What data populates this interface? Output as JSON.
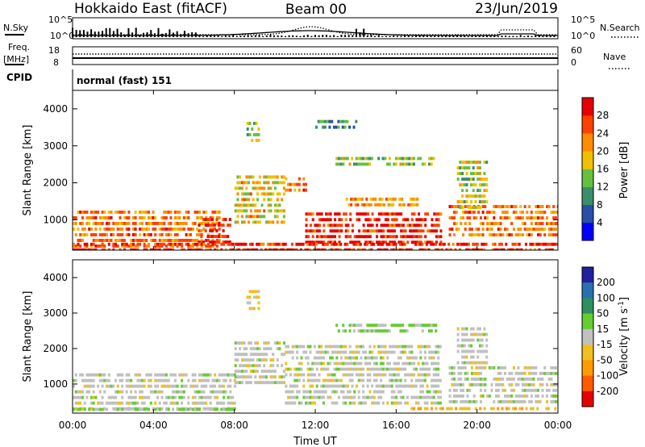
{
  "header": {
    "station": "Hokkaido East (fitACF)",
    "beam": "Beam 00",
    "date": "23/Jun/2019"
  },
  "noise_panel": {
    "left_label": "N.Sky",
    "right_label": "N.Search",
    "left_ticks": [
      "10^5",
      "10^0"
    ],
    "right_ticks": [
      "10^5",
      "10^0"
    ]
  },
  "freq_panel": {
    "left_label_1": "Freq.",
    "left_label_2": "[MHz]",
    "right_label": "Nave",
    "left_ticks": [
      "18",
      "8"
    ],
    "right_ticks": [
      "60",
      "0"
    ]
  },
  "cpid_panel": {
    "label": "CPID",
    "mode": "normal (fast) 151"
  },
  "time_axis": {
    "label": "Time UT",
    "ticks": [
      "00:00",
      "04:00",
      "08:00",
      "12:00",
      "16:00",
      "20:00",
      "00:00"
    ]
  },
  "colors": {
    "power_scale": [
      "#0000ff",
      "#2a4fa8",
      "#3a8f6a",
      "#66c040",
      "#f0c000",
      "#ff8c00",
      "#ff4000",
      "#e60000"
    ],
    "velocity_scale": [
      "#e60000",
      "#ff5a00",
      "#ff9a00",
      "#f0c020",
      "#c0c0c0",
      "#66cc33",
      "#2f8f5f",
      "#2a6fb0",
      "#2020a0"
    ],
    "ground_scatter": "#c0c0c0"
  },
  "chart_data": [
    {
      "type": "heatmap",
      "title": "",
      "ylabel": "Slant Range [km]",
      "xlabel": "Time UT",
      "x": [
        "00:00",
        "04:00",
        "08:00",
        "12:00",
        "16:00",
        "20:00",
        "00:00"
      ],
      "yticks": [
        "1000",
        "2000",
        "3000",
        "4000"
      ],
      "ylim": [
        180,
        4500
      ],
      "xlim_hours": [
        0,
        24
      ],
      "colorbar": {
        "label": "Power [dB]",
        "ticks": [
          "4",
          "8",
          "12",
          "16",
          "20",
          "24",
          "28"
        ],
        "range": [
          0,
          30
        ]
      },
      "regions": [
        {
          "t0": 0,
          "t1": 7.3,
          "r0": 200,
          "r1": 1250,
          "value": 22
        },
        {
          "t0": 6.2,
          "t1": 7.8,
          "r0": 350,
          "r1": 1050,
          "value": 27
        },
        {
          "t0": 8.0,
          "t1": 10.5,
          "r0": 900,
          "r1": 2200,
          "value": 18
        },
        {
          "t0": 10.5,
          "t1": 11.5,
          "r0": 1800,
          "r1": 2150,
          "value": 22
        },
        {
          "t0": 11.5,
          "t1": 18.2,
          "r0": 300,
          "r1": 1200,
          "value": 27
        },
        {
          "t0": 13.5,
          "t1": 17.0,
          "r0": 1300,
          "r1": 1600,
          "value": 20
        },
        {
          "t0": 18.6,
          "t1": 24,
          "r0": 500,
          "r1": 1400,
          "value": 22
        },
        {
          "t0": 19.0,
          "t1": 20.5,
          "r0": 1300,
          "r1": 2600,
          "value": 15
        },
        {
          "t0": 0,
          "t1": 24,
          "r0": 180,
          "r1": 380,
          "value": 26
        },
        {
          "t0": 8.6,
          "t1": 9.2,
          "r0": 3150,
          "r1": 3650,
          "value": 14
        },
        {
          "t0": 13.0,
          "t1": 18.0,
          "r0": 2400,
          "r1": 2700,
          "value": 14
        },
        {
          "t0": 12.0,
          "t1": 14.0,
          "r0": 3400,
          "r1": 3700,
          "value": 10
        }
      ]
    },
    {
      "type": "heatmap",
      "title": "",
      "ylabel": "Slant Range [km]",
      "xlabel": "Time UT",
      "x": [
        "00:00",
        "04:00",
        "08:00",
        "12:00",
        "16:00",
        "20:00",
        "00:00"
      ],
      "yticks": [
        "1000",
        "2000",
        "3000",
        "4000"
      ],
      "ylim": [
        180,
        4500
      ],
      "xlim_hours": [
        0,
        24
      ],
      "colorbar": {
        "label": "Velocity [m s^-1]",
        "ticks": [
          "200",
          "100",
          "50",
          "15",
          "-15",
          "-50",
          "-100",
          "-200"
        ],
        "range": [
          -250,
          250
        ]
      },
      "regions": [
        {
          "t0": 0,
          "t1": 8.0,
          "r0": 250,
          "r1": 1300,
          "value": 0
        },
        {
          "t0": 8.0,
          "t1": 10.5,
          "r0": 1000,
          "r1": 2200,
          "value": 0
        },
        {
          "t0": 10.5,
          "t1": 18.2,
          "r0": 400,
          "r1": 2100,
          "value": 0
        },
        {
          "t0": 18.6,
          "t1": 24,
          "r0": 500,
          "r1": 1500,
          "value": 0
        },
        {
          "t0": 19.0,
          "t1": 20.5,
          "r0": 1500,
          "r1": 2600,
          "value": 0
        },
        {
          "t0": 0,
          "t1": 8.0,
          "r0": 180,
          "r1": 330,
          "value": 25
        },
        {
          "t0": 16.5,
          "t1": 24,
          "r0": 180,
          "r1": 350,
          "value": -40
        },
        {
          "t0": 13.0,
          "t1": 18.0,
          "r0": 2400,
          "r1": 2700,
          "value": 20
        },
        {
          "t0": 8.6,
          "t1": 9.2,
          "r0": 3150,
          "r1": 3650,
          "value": -20
        }
      ]
    }
  ]
}
